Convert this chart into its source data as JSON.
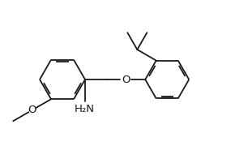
{
  "background_color": "#ffffff",
  "line_color": "#1a1a1a",
  "line_width": 1.3,
  "dbo": 0.012,
  "shrink": 0.013,
  "figsize": [
    3.06,
    1.8
  ],
  "dpi": 100,
  "xlim": [
    0,
    3.06
  ],
  "ylim": [
    0,
    1.8
  ],
  "nh2_label": "H₂N",
  "o_label": "O",
  "font_size": 9.5
}
